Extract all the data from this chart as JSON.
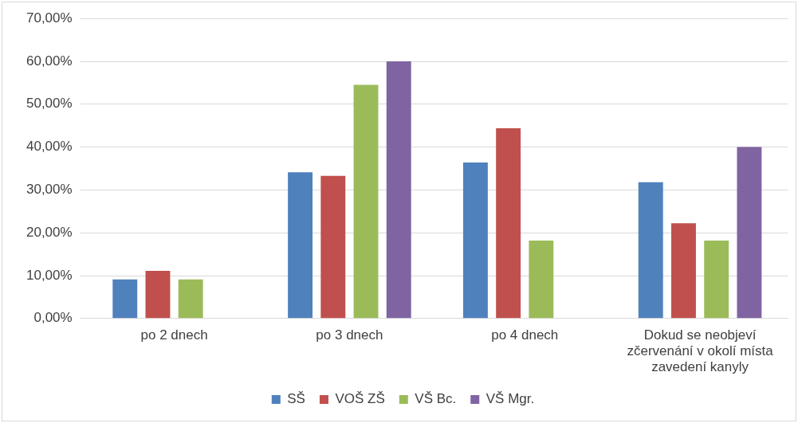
{
  "chart_data": {
    "type": "bar",
    "categories": [
      "po 2 dnech",
      "po 3 dnech",
      "po 4 dnech",
      "Dokud se neobjeví zčervenání v okolí místa zavedení kanyly"
    ],
    "series": [
      {
        "name": "SŠ",
        "color": "#4f81bd",
        "values": [
          9.1,
          34.1,
          36.4,
          31.8
        ]
      },
      {
        "name": "VOŠ ZŠ",
        "color": "#c0504d",
        "values": [
          11.1,
          33.3,
          44.4,
          22.2
        ]
      },
      {
        "name": "VŠ Bc.",
        "color": "#9bbb59",
        "values": [
          9.1,
          54.5,
          18.2,
          18.2
        ]
      },
      {
        "name": "VŠ Mgr.",
        "color": "#8064a2",
        "values": [
          0,
          60,
          0,
          40
        ]
      }
    ],
    "ylim": [
      0,
      70
    ],
    "yticks": [
      {
        "value": 0,
        "label": "0,00%"
      },
      {
        "value": 10,
        "label": "10,00%"
      },
      {
        "value": 20,
        "label": "20,00%"
      },
      {
        "value": 30,
        "label": "30,00%"
      },
      {
        "value": 40,
        "label": "40,00%"
      },
      {
        "value": 50,
        "label": "50,00%"
      },
      {
        "value": 60,
        "label": "60,00%"
      },
      {
        "value": 70,
        "label": "70,00%"
      }
    ],
    "grid": "y",
    "legend": "bottom"
  }
}
